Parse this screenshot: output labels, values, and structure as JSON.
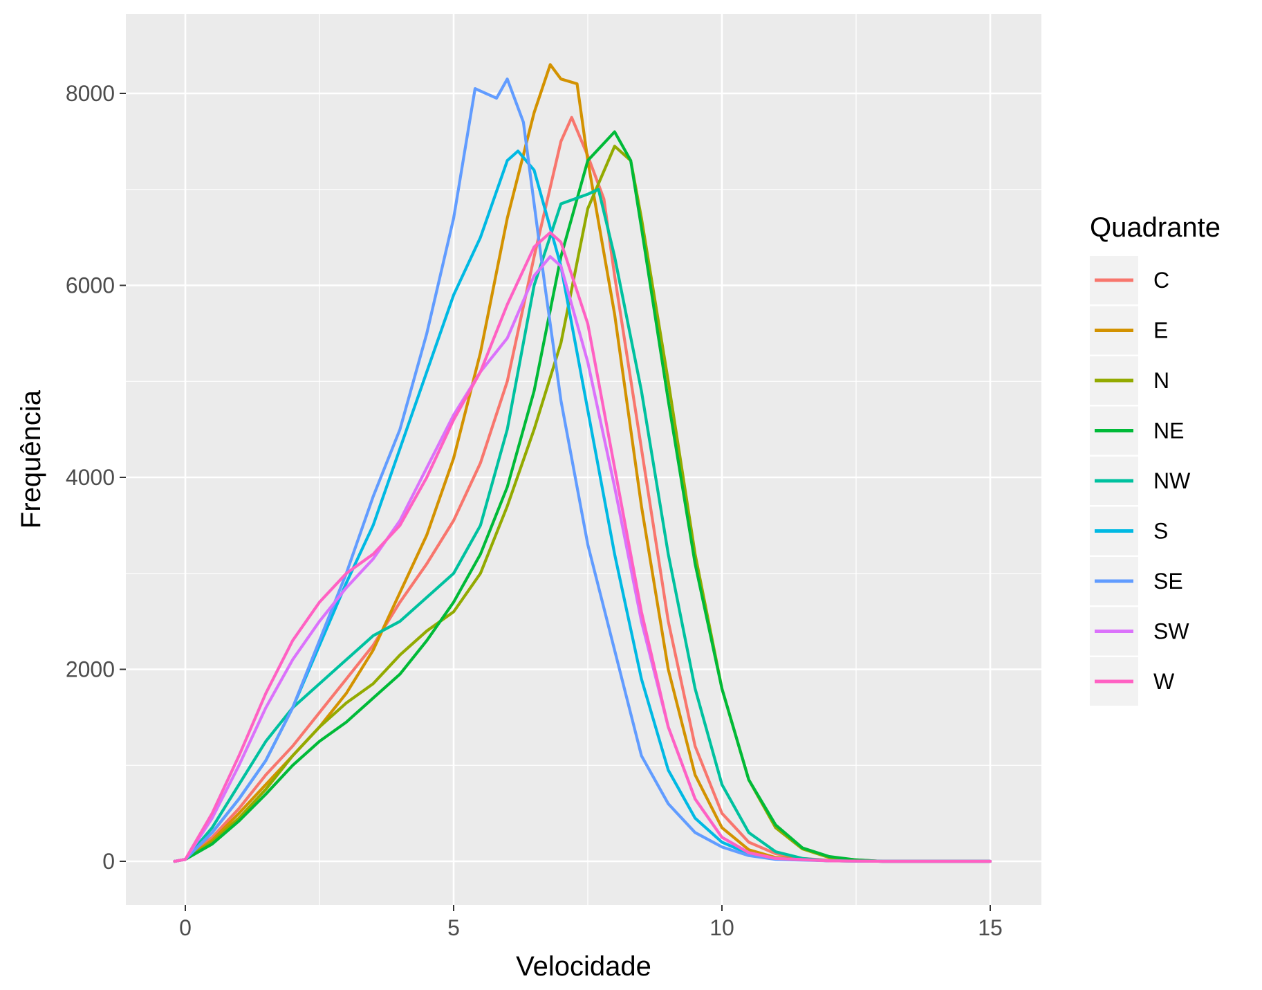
{
  "chart_data": {
    "type": "line",
    "title": "",
    "xlabel": "Velocidade",
    "ylabel": "Frequência",
    "xlim": [
      -0.3,
      15
    ],
    "ylim": [
      0,
      8400
    ],
    "x_ticks": [
      "0",
      "5",
      "10",
      "15"
    ],
    "y_ticks": [
      "0",
      "2000",
      "4000",
      "6000",
      "8000"
    ],
    "grid": true,
    "legend": {
      "title": "Quadrante",
      "position": "right"
    },
    "series": [
      {
        "name": "C",
        "color": "#F8766D",
        "points": [
          [
            -0.2,
            0
          ],
          [
            0,
            20
          ],
          [
            0.5,
            250
          ],
          [
            1,
            550
          ],
          [
            1.5,
            900
          ],
          [
            2,
            1200
          ],
          [
            2.5,
            1550
          ],
          [
            3,
            1900
          ],
          [
            3.5,
            2250
          ],
          [
            4,
            2700
          ],
          [
            4.5,
            3100
          ],
          [
            5,
            3550
          ],
          [
            5.5,
            4150
          ],
          [
            6,
            5000
          ],
          [
            6.5,
            6300
          ],
          [
            7,
            7500
          ],
          [
            7.2,
            7750
          ],
          [
            7.5,
            7350
          ],
          [
            7.8,
            6900
          ],
          [
            8,
            6100
          ],
          [
            8.5,
            4300
          ],
          [
            9,
            2500
          ],
          [
            9.5,
            1200
          ],
          [
            10,
            500
          ],
          [
            10.5,
            200
          ],
          [
            11,
            80
          ],
          [
            11.5,
            30
          ],
          [
            12,
            10
          ],
          [
            13,
            0
          ],
          [
            15,
            0
          ]
        ]
      },
      {
        "name": "E",
        "color": "#D39200",
        "points": [
          [
            -0.2,
            0
          ],
          [
            0,
            20
          ],
          [
            0.5,
            220
          ],
          [
            1,
            500
          ],
          [
            1.5,
            800
          ],
          [
            2,
            1100
          ],
          [
            2.5,
            1400
          ],
          [
            3,
            1750
          ],
          [
            3.5,
            2200
          ],
          [
            4,
            2800
          ],
          [
            4.5,
            3400
          ],
          [
            5,
            4200
          ],
          [
            5.5,
            5300
          ],
          [
            6,
            6700
          ],
          [
            6.5,
            7800
          ],
          [
            6.8,
            8300
          ],
          [
            7,
            8150
          ],
          [
            7.3,
            8100
          ],
          [
            7.5,
            7300
          ],
          [
            8,
            5700
          ],
          [
            8.5,
            3700
          ],
          [
            9,
            2000
          ],
          [
            9.5,
            900
          ],
          [
            10,
            350
          ],
          [
            10.5,
            120
          ],
          [
            11,
            40
          ],
          [
            12,
            5
          ],
          [
            13,
            0
          ],
          [
            15,
            0
          ]
        ]
      },
      {
        "name": "N",
        "color": "#93AA00",
        "points": [
          [
            -0.2,
            0
          ],
          [
            0,
            20
          ],
          [
            0.5,
            200
          ],
          [
            1,
            450
          ],
          [
            1.5,
            750
          ],
          [
            2,
            1100
          ],
          [
            2.5,
            1400
          ],
          [
            3,
            1650
          ],
          [
            3.5,
            1850
          ],
          [
            4,
            2150
          ],
          [
            4.5,
            2400
          ],
          [
            5,
            2600
          ],
          [
            5.5,
            3000
          ],
          [
            6,
            3700
          ],
          [
            6.5,
            4500
          ],
          [
            7,
            5400
          ],
          [
            7.5,
            6800
          ],
          [
            8,
            7450
          ],
          [
            8.3,
            7300
          ],
          [
            8.5,
            6700
          ],
          [
            9,
            5000
          ],
          [
            9.5,
            3200
          ],
          [
            10,
            1800
          ],
          [
            10.5,
            850
          ],
          [
            11,
            350
          ],
          [
            11.5,
            130
          ],
          [
            12,
            40
          ],
          [
            12.5,
            15
          ],
          [
            13,
            0
          ],
          [
            15,
            0
          ]
        ]
      },
      {
        "name": "NE",
        "color": "#00BA38",
        "points": [
          [
            -0.2,
            0
          ],
          [
            0,
            20
          ],
          [
            0.5,
            180
          ],
          [
            1,
            420
          ],
          [
            1.5,
            700
          ],
          [
            2,
            1000
          ],
          [
            2.5,
            1250
          ],
          [
            3,
            1450
          ],
          [
            3.5,
            1700
          ],
          [
            4,
            1950
          ],
          [
            4.5,
            2300
          ],
          [
            5,
            2700
          ],
          [
            5.5,
            3200
          ],
          [
            6,
            3900
          ],
          [
            6.5,
            4900
          ],
          [
            7,
            6300
          ],
          [
            7.5,
            7300
          ],
          [
            8,
            7600
          ],
          [
            8.3,
            7300
          ],
          [
            8.5,
            6600
          ],
          [
            9,
            4800
          ],
          [
            9.5,
            3100
          ],
          [
            10,
            1800
          ],
          [
            10.5,
            850
          ],
          [
            11,
            380
          ],
          [
            11.5,
            140
          ],
          [
            12,
            50
          ],
          [
            12.5,
            15
          ],
          [
            13,
            0
          ],
          [
            15,
            0
          ]
        ]
      },
      {
        "name": "NW",
        "color": "#00C19F",
        "points": [
          [
            -0.2,
            0
          ],
          [
            0,
            20
          ],
          [
            0.5,
            350
          ],
          [
            1,
            800
          ],
          [
            1.5,
            1250
          ],
          [
            2,
            1600
          ],
          [
            2.5,
            1850
          ],
          [
            3,
            2100
          ],
          [
            3.5,
            2350
          ],
          [
            4,
            2500
          ],
          [
            4.5,
            2750
          ],
          [
            5,
            3000
          ],
          [
            5.5,
            3500
          ],
          [
            6,
            4500
          ],
          [
            6.5,
            6000
          ],
          [
            7,
            6850
          ],
          [
            7.5,
            6950
          ],
          [
            7.7,
            7000
          ],
          [
            8,
            6300
          ],
          [
            8.5,
            4900
          ],
          [
            9,
            3200
          ],
          [
            9.5,
            1800
          ],
          [
            10,
            800
          ],
          [
            10.5,
            300
          ],
          [
            11,
            100
          ],
          [
            11.5,
            30
          ],
          [
            12,
            5
          ],
          [
            13,
            0
          ],
          [
            15,
            0
          ]
        ]
      },
      {
        "name": "S",
        "color": "#00B9E3",
        "points": [
          [
            -0.2,
            0
          ],
          [
            0,
            20
          ],
          [
            0.5,
            300
          ],
          [
            1,
            650
          ],
          [
            1.5,
            1050
          ],
          [
            2,
            1600
          ],
          [
            2.5,
            2250
          ],
          [
            3,
            2900
          ],
          [
            3.5,
            3500
          ],
          [
            4,
            4300
          ],
          [
            4.5,
            5100
          ],
          [
            5,
            5900
          ],
          [
            5.5,
            6500
          ],
          [
            6,
            7300
          ],
          [
            6.2,
            7400
          ],
          [
            6.5,
            7200
          ],
          [
            7,
            6200
          ],
          [
            7.5,
            4700
          ],
          [
            8,
            3200
          ],
          [
            8.5,
            1900
          ],
          [
            9,
            950
          ],
          [
            9.5,
            450
          ],
          [
            10,
            200
          ],
          [
            10.5,
            80
          ],
          [
            11,
            30
          ],
          [
            12,
            5
          ],
          [
            13,
            0
          ],
          [
            15,
            0
          ]
        ]
      },
      {
        "name": "SE",
        "color": "#619CFF",
        "points": [
          [
            -0.2,
            0
          ],
          [
            0,
            20
          ],
          [
            0.5,
            300
          ],
          [
            1,
            650
          ],
          [
            1.5,
            1050
          ],
          [
            2,
            1600
          ],
          [
            2.5,
            2300
          ],
          [
            3,
            3000
          ],
          [
            3.5,
            3800
          ],
          [
            4,
            4500
          ],
          [
            4.5,
            5500
          ],
          [
            5,
            6700
          ],
          [
            5.4,
            8050
          ],
          [
            5.8,
            7950
          ],
          [
            6,
            8150
          ],
          [
            6.3,
            7700
          ],
          [
            6.7,
            6000
          ],
          [
            7,
            4800
          ],
          [
            7.5,
            3300
          ],
          [
            8,
            2200
          ],
          [
            8.5,
            1100
          ],
          [
            9,
            600
          ],
          [
            9.5,
            300
          ],
          [
            10,
            150
          ],
          [
            10.5,
            60
          ],
          [
            11,
            20
          ],
          [
            12,
            5
          ],
          [
            13,
            0
          ],
          [
            15,
            0
          ]
        ]
      },
      {
        "name": "SW",
        "color": "#DB72FB",
        "points": [
          [
            -0.2,
            0
          ],
          [
            0,
            20
          ],
          [
            0.5,
            450
          ],
          [
            1,
            1000
          ],
          [
            1.5,
            1600
          ],
          [
            2,
            2100
          ],
          [
            2.5,
            2500
          ],
          [
            3,
            2850
          ],
          [
            3.5,
            3150
          ],
          [
            4,
            3550
          ],
          [
            4.5,
            4100
          ],
          [
            5,
            4650
          ],
          [
            5.5,
            5100
          ],
          [
            6,
            5450
          ],
          [
            6.5,
            6100
          ],
          [
            6.8,
            6300
          ],
          [
            7,
            6200
          ],
          [
            7.5,
            5200
          ],
          [
            8,
            3900
          ],
          [
            8.5,
            2500
          ],
          [
            9,
            1400
          ],
          [
            9.5,
            650
          ],
          [
            10,
            250
          ],
          [
            10.5,
            90
          ],
          [
            11,
            30
          ],
          [
            12,
            5
          ],
          [
            13,
            0
          ],
          [
            15,
            0
          ]
        ]
      },
      {
        "name": "W",
        "color": "#FF61C3",
        "points": [
          [
            -0.2,
            0
          ],
          [
            0,
            20
          ],
          [
            0.5,
            500
          ],
          [
            1,
            1100
          ],
          [
            1.5,
            1750
          ],
          [
            2,
            2300
          ],
          [
            2.5,
            2700
          ],
          [
            3,
            3000
          ],
          [
            3.5,
            3200
          ],
          [
            4,
            3500
          ],
          [
            4.5,
            4000
          ],
          [
            5,
            4600
          ],
          [
            5.5,
            5100
          ],
          [
            6,
            5800
          ],
          [
            6.5,
            6400
          ],
          [
            6.8,
            6550
          ],
          [
            7,
            6450
          ],
          [
            7.5,
            5600
          ],
          [
            8,
            4100
          ],
          [
            8.5,
            2600
          ],
          [
            9,
            1400
          ],
          [
            9.5,
            650
          ],
          [
            10,
            250
          ],
          [
            10.5,
            90
          ],
          [
            11,
            30
          ],
          [
            12,
            5
          ],
          [
            13,
            0
          ],
          [
            15,
            0
          ]
        ]
      }
    ]
  }
}
